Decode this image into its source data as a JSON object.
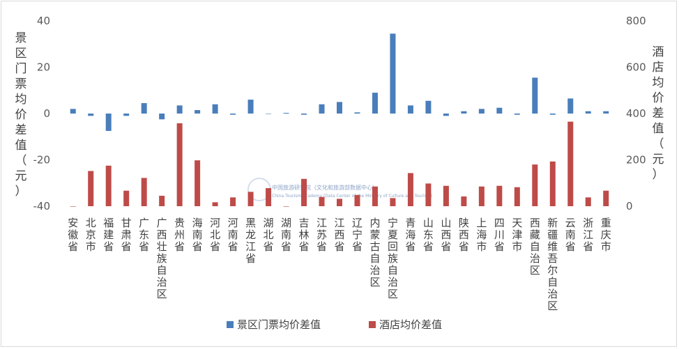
{
  "chart_data": {
    "type": "bar",
    "title": "",
    "categories": [
      "安徽省",
      "北京市",
      "福建省",
      "甘肃省",
      "广东省",
      "广西壮族自治区",
      "贵州省",
      "海南省",
      "河北省",
      "河南省",
      "黑龙江省",
      "湖北省",
      "湖南省",
      "吉林省",
      "江苏省",
      "江西省",
      "辽宁省",
      "内蒙古自治区",
      "宁夏回族自治区",
      "青海省",
      "山东省",
      "山西省",
      "陕西省",
      "上海市",
      "四川省",
      "天津市",
      "西藏自治区",
      "新疆维吾尔自治区",
      "云南省",
      "浙江省",
      "重庆市"
    ],
    "series": [
      {
        "name": "景区门票均价差值",
        "axis": "left",
        "color": "#4a7ebb",
        "values": [
          2,
          -1,
          -7.5,
          -1,
          4.5,
          -2.5,
          3.5,
          1.5,
          4,
          -0.5,
          6,
          0,
          0.3,
          -0.5,
          4,
          5,
          0.5,
          9,
          34.5,
          3.5,
          5.5,
          -1,
          1,
          2,
          2.5,
          -0.5,
          15.5,
          -0.5,
          6.5,
          1,
          1
        ]
      },
      {
        "name": "酒店均价差值",
        "axis": "right",
        "color": "#be4b48",
        "values": [
          0,
          152,
          175,
          67,
          122,
          45,
          358,
          198,
          17,
          38,
          62,
          78,
          0,
          118,
          40,
          32,
          48,
          85,
          35,
          143,
          98,
          88,
          42,
          85,
          88,
          82,
          180,
          193,
          365,
          38,
          67
        ]
      }
    ],
    "y_left": {
      "label": "景区门票均价差值（元）",
      "min": -40,
      "max": 40,
      "ticks": [
        -40,
        -20,
        0,
        20,
        40
      ]
    },
    "y_right": {
      "label": "酒店均价差值（元）",
      "min": 0,
      "max": 800,
      "ticks": [
        0,
        200,
        400,
        600,
        800
      ]
    },
    "legend_position": "bottom",
    "grid": false
  },
  "watermark": {
    "line1": "中国旅游研究院（文化和旅游部数据中心）",
    "line2": "China Tourism Academy (Data Center of the Ministry of Culture and Tourism)"
  }
}
